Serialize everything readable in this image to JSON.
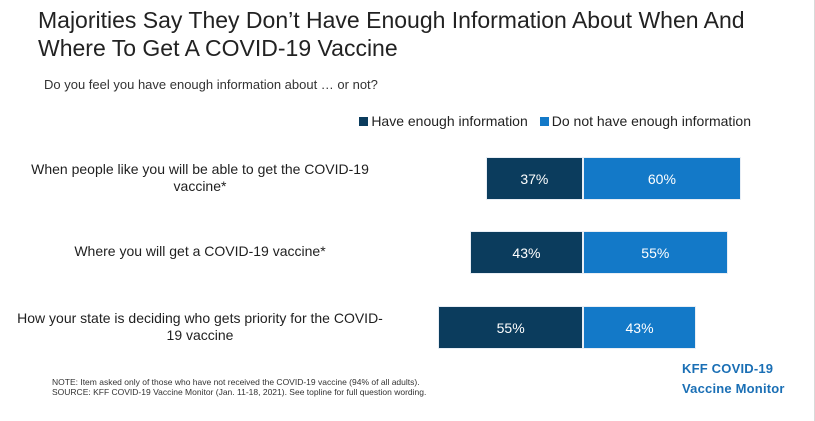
{
  "title": "Majorities Say They Don’t Have Enough Information About When And Where To Get A COVID-19 Vaccine",
  "subtitle": "Do you feel you have enough information about … or not?",
  "legend": {
    "have": "Have enough information",
    "not": "Do not have enough information"
  },
  "colors": {
    "have": "#0b3c5d",
    "not": "#1379c8"
  },
  "chart_data": {
    "type": "bar",
    "orientation": "horizontal-diverging",
    "categories": [
      "When people like you will be able to get the COVID-19 vaccine*",
      "Where you will get a COVID-19 vaccine*",
      "How your state is deciding who gets priority for the COVID-19 vaccine"
    ],
    "series": [
      {
        "name": "Have enough information",
        "values": [
          37,
          43,
          55
        ],
        "labels": [
          "37%",
          "43%",
          "55%"
        ]
      },
      {
        "name": "Do not have enough information",
        "values": [
          60,
          55,
          43
        ],
        "labels": [
          "60%",
          "55%",
          "43%"
        ]
      }
    ],
    "title": "Majorities Say They Don’t Have Enough Information About When And Where To Get A COVID-19 Vaccine",
    "xlabel": "",
    "ylabel": "",
    "xlim": [
      0,
      100
    ]
  },
  "note": "NOTE: Item asked only of those who have not received the COVID-19 vaccine (94% of all adults).",
  "source": "SOURCE: KFF COVID-19 Vaccine Monitor (Jan. 11-18, 2021). See topline for full question wording.",
  "logo": {
    "line1": "KFF COVID-19",
    "line2": "Vaccine Monitor"
  }
}
